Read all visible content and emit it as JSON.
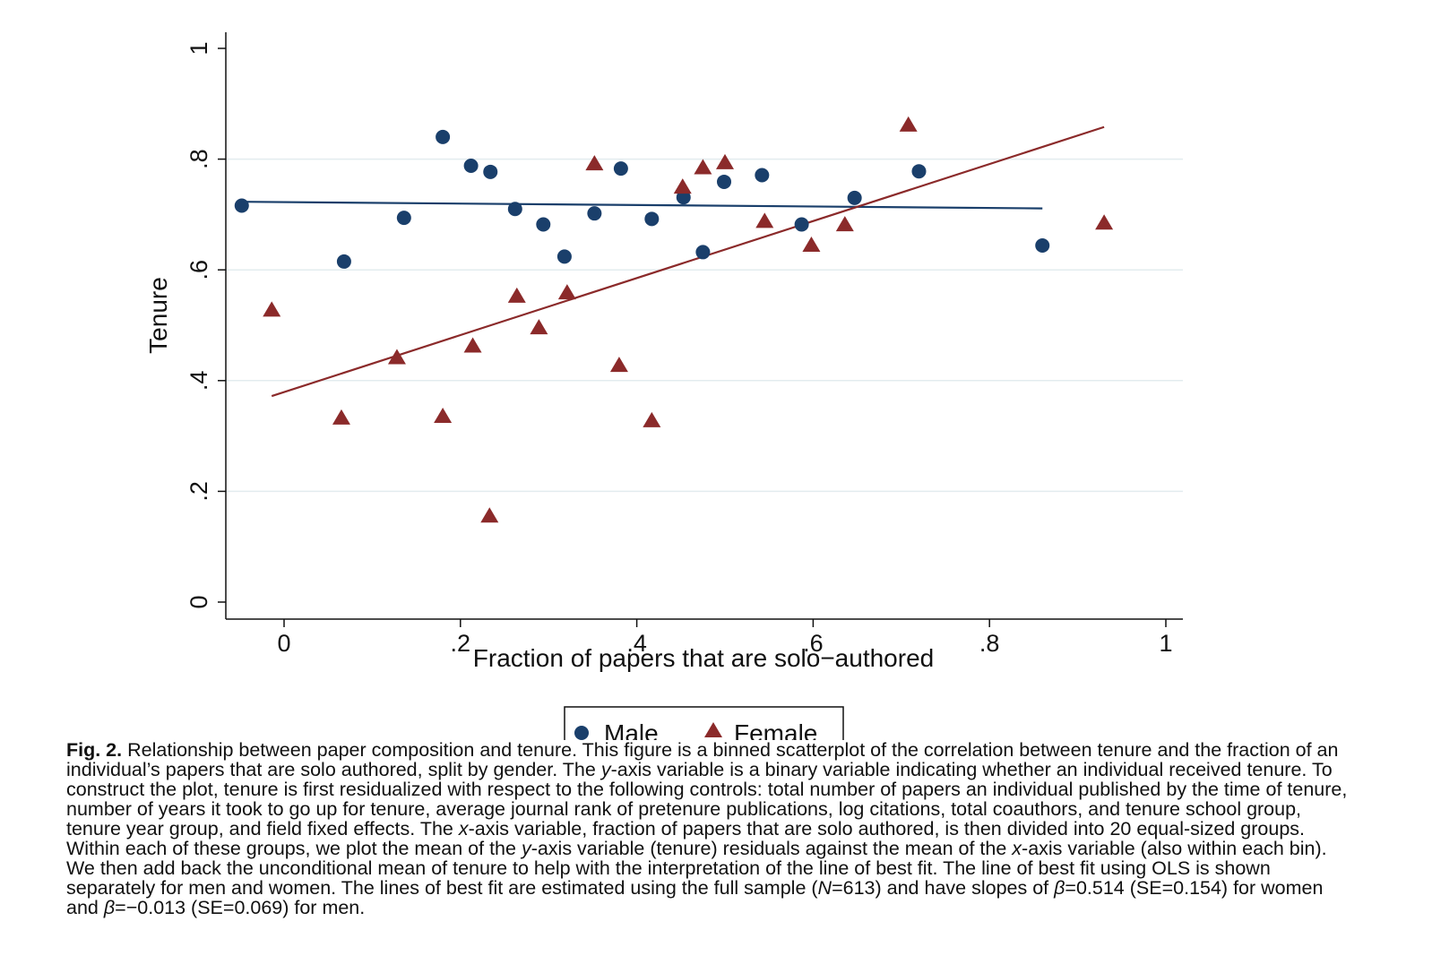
{
  "chart_data": {
    "type": "scatter",
    "title": "",
    "xlabel": "Fraction of papers that are solo−authored",
    "ylabel": "Tenure",
    "xlim": [
      -0.07,
      1.02
    ],
    "ylim": [
      -0.03,
      1.03
    ],
    "x_ticks": [
      0,
      0.2,
      0.4,
      0.6,
      0.8,
      1
    ],
    "x_tick_labels": [
      "0",
      ".2",
      ".4",
      ".6",
      ".8",
      "1"
    ],
    "y_ticks": [
      0,
      0.2,
      0.4,
      0.6,
      0.8,
      1
    ],
    "y_tick_labels": [
      "0",
      ".2",
      ".4",
      ".6",
      ".8",
      "1"
    ],
    "grid": "horizontal",
    "legend_position": "bottom",
    "series": [
      {
        "name": "Male",
        "marker": "circle",
        "color": "#1a3f6b",
        "points": [
          [
            -0.048,
            0.716
          ],
          [
            0.068,
            0.615
          ],
          [
            0.136,
            0.694
          ],
          [
            0.18,
            0.84
          ],
          [
            0.212,
            0.788
          ],
          [
            0.234,
            0.777
          ],
          [
            0.262,
            0.71
          ],
          [
            0.294,
            0.682
          ],
          [
            0.318,
            0.624
          ],
          [
            0.352,
            0.702
          ],
          [
            0.382,
            0.783
          ],
          [
            0.417,
            0.692
          ],
          [
            0.453,
            0.731
          ],
          [
            0.475,
            0.632
          ],
          [
            0.499,
            0.759
          ],
          [
            0.542,
            0.771
          ],
          [
            0.587,
            0.682
          ],
          [
            0.647,
            0.73
          ],
          [
            0.72,
            0.778
          ],
          [
            0.86,
            0.644
          ]
        ],
        "fit_line": [
          [
            -0.048,
            0.723
          ],
          [
            0.86,
            0.711
          ]
        ]
      },
      {
        "name": "Female",
        "marker": "triangle",
        "color": "#8b2a2a",
        "points": [
          [
            -0.014,
            0.527
          ],
          [
            0.065,
            0.332
          ],
          [
            0.128,
            0.441
          ],
          [
            0.18,
            0.335
          ],
          [
            0.214,
            0.462
          ],
          [
            0.233,
            0.155
          ],
          [
            0.264,
            0.552
          ],
          [
            0.289,
            0.495
          ],
          [
            0.321,
            0.558
          ],
          [
            0.352,
            0.791
          ],
          [
            0.38,
            0.427
          ],
          [
            0.417,
            0.327
          ],
          [
            0.452,
            0.749
          ],
          [
            0.475,
            0.784
          ],
          [
            0.5,
            0.793
          ],
          [
            0.545,
            0.687
          ],
          [
            0.598,
            0.644
          ],
          [
            0.636,
            0.681
          ],
          [
            0.708,
            0.861
          ],
          [
            0.93,
            0.684
          ]
        ],
        "fit_line": [
          [
            -0.014,
            0.372
          ],
          [
            0.93,
            0.858
          ]
        ]
      }
    ]
  },
  "caption": {
    "fig_label": "Fig. 2.",
    "parts": [
      " Relationship between paper composition and tenure. This figure is a binned scatterplot of the correlation between tenure and the fraction of an individual’s papers that are solo authored, split by gender. The ",
      "y",
      "-axis variable is a binary variable indicating whether an individual received tenure. To construct the plot, tenure is first residualized with respect to the following controls: total number of papers an individual published by the time of tenure, number of years it took to go up for tenure, average journal rank of pretenure publications, log citations, total coauthors, and tenure school group, tenure year group, and field fixed effects. The ",
      "x",
      "-axis variable, fraction of papers that are solo authored, is then divided into 20 equal-sized groups. Within each of these groups, we plot the mean of the ",
      "y",
      "-axis variable (tenure) residuals against the mean of the ",
      "x",
      "-axis variable (also within each bin). We then add back the unconditional mean of tenure to help with the interpretation of the line of best fit. The line of best fit using OLS is shown separately for men and women. The lines of best fit are estimated using the full sample (",
      "N",
      "=613) and have slopes of ",
      "β",
      "=0.514 (SE=0.154) for women and ",
      "β",
      "=−0.013 (SE=0.069) for men."
    ]
  }
}
